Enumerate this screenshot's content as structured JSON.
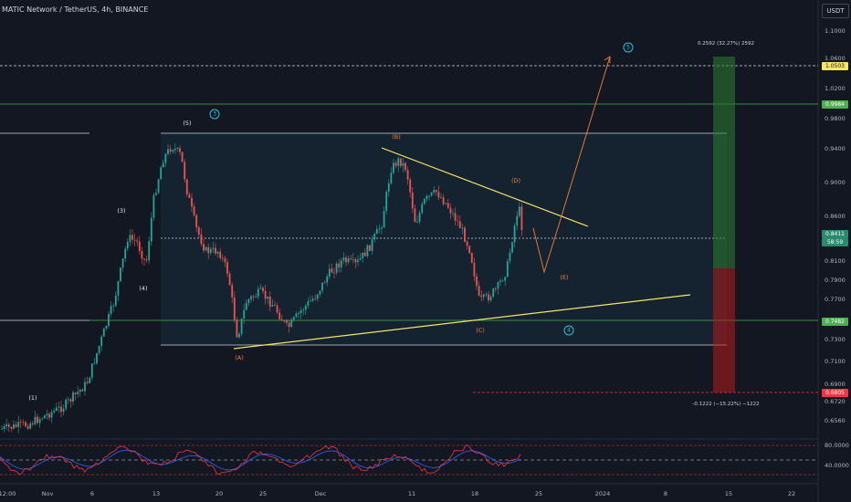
{
  "title": "MATIC Network / TetherUS, 4h, BINANCE",
  "currency": "USDT",
  "price_ticks": [
    "1.1000",
    "1.0600",
    "1.0200",
    "0.9800",
    "0.9400",
    "0.9000",
    "0.8600",
    "0.8100",
    "0.7900",
    "0.7700",
    "0.7300",
    "0.7100",
    "0.6900",
    "0.6720",
    "0.6560"
  ],
  "rsi_ticks": [
    "80.0000",
    "40.0000"
  ],
  "date_ticks": [
    "12:00",
    "Nov",
    "6",
    "13",
    "20",
    "25",
    "Dec",
    "11",
    "18",
    "25",
    "2024",
    "8",
    "15",
    "22"
  ],
  "price_tags": [
    {
      "label": "1.0503",
      "bg": "#f5e663",
      "fg": "#131722"
    },
    {
      "label": "0.9984",
      "bg": "#4caf50",
      "fg": "#ffffff"
    },
    {
      "label": "0.8411",
      "bg": "#2a8a6e",
      "fg": "#ffffff"
    },
    {
      "label": "58:59",
      "bg": "#2a8a6e",
      "fg": "#ffffff"
    },
    {
      "label": "0.7482",
      "bg": "#4caf50",
      "fg": "#ffffff"
    },
    {
      "label": "0.6805",
      "bg": "#f23645",
      "fg": "#ffffff"
    }
  ],
  "wave_labels": [
    {
      "text": "(1)",
      "style": "w"
    },
    {
      "text": "(3)",
      "style": "w"
    },
    {
      "text": "(4)",
      "style": "w"
    },
    {
      "text": "(5)",
      "style": "w"
    },
    {
      "text": "3",
      "style": "c"
    },
    {
      "text": "(A)",
      "style": "o"
    },
    {
      "text": "(B)",
      "style": "o"
    },
    {
      "text": "(C)",
      "style": "o"
    },
    {
      "text": "(D)",
      "style": "o"
    },
    {
      "text": "(E)",
      "style": "o"
    },
    {
      "text": "4",
      "style": "c"
    },
    {
      "text": "5",
      "style": "c"
    }
  ],
  "position_notes": {
    "target": "0.2592 (32.27%) 2592",
    "stop": "-0.1222 (−15.22%) −1222"
  },
  "colors": {
    "background": "#131722",
    "up_candle": "#26a69a",
    "down_candle": "#ef5350",
    "triangle": "#f5e663",
    "projection": "#f57f3d",
    "rsi_line": "#7e57c2"
  }
}
